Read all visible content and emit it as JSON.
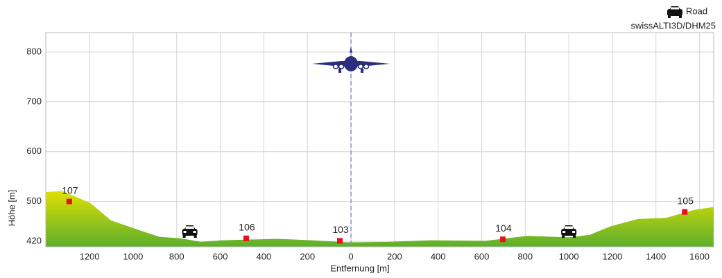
{
  "chart_data": {
    "type": "area",
    "legend_label": "Road",
    "source": "swissALTI3D/DHM25",
    "x_label": "Entfernung [m]",
    "y_label": "Höhe [m]",
    "x": [
      -1401,
      -1325,
      -1197,
      -1102,
      -975,
      -879,
      -783,
      -688,
      -592,
      -338,
      -178,
      -19,
      172,
      363,
      618,
      809,
      1000,
      1096,
      1191,
      1318,
      1446,
      1573,
      1665
    ],
    "values": [
      519,
      521,
      497,
      462,
      443,
      429,
      426,
      419,
      422,
      425,
      422,
      418,
      419,
      422,
      421,
      431,
      428,
      433,
      450,
      465,
      467,
      483,
      489
    ],
    "fill_top": "#e8e400",
    "fill_bottom": "#5cae2c",
    "points": [
      {
        "label": "107",
        "x": -1293,
        "y": 500
      },
      {
        "label": "106",
        "x": -481,
        "y": 426
      },
      {
        "label": "103",
        "x": -51,
        "y": 421
      },
      {
        "label": "104",
        "x": 697,
        "y": 424
      },
      {
        "label": "105",
        "x": 1532,
        "y": 479
      }
    ],
    "point_color": "#e8101a",
    "road_crossings": [
      -740,
      1000
    ],
    "xlim": [
      -1401,
      1665
    ],
    "ylim": [
      409,
      839
    ],
    "xticks": [
      {
        "value": -1200,
        "label": "1200"
      },
      {
        "value": -1000,
        "label": "1000"
      },
      {
        "value": -800,
        "label": "800"
      },
      {
        "value": -600,
        "label": "600"
      },
      {
        "value": -400,
        "label": "400"
      },
      {
        "value": -200,
        "label": "200"
      },
      0,
      200,
      400,
      600,
      800,
      1000,
      1200,
      1400,
      1600
    ],
    "yticks": [
      420,
      500,
      600,
      700,
      800
    ],
    "grid": true
  }
}
